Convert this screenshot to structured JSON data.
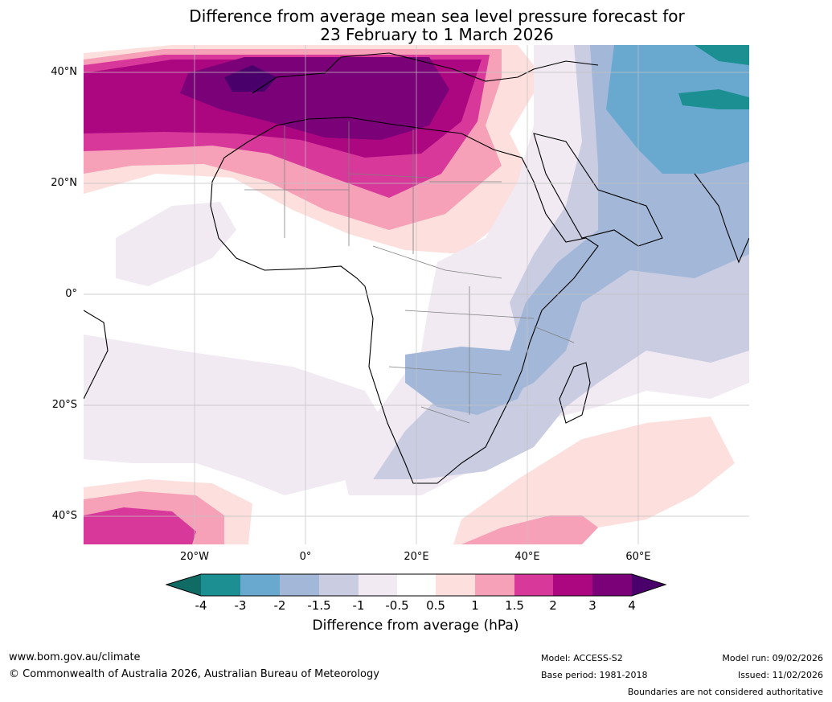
{
  "title": {
    "line1": "Difference from average mean sea level pressure forecast for",
    "line2": "23 February to 1 March 2026"
  },
  "map": {
    "region": "Africa, Middle East and surrounding oceans",
    "lat_labels": [
      "40°N",
      "20°N",
      "0°",
      "20°S",
      "40°S"
    ],
    "lon_labels": [
      "20°W",
      "0°",
      "20°E",
      "40°E",
      "60°E"
    ],
    "anomaly_zones": [
      {
        "area": "North Atlantic and Mediterranean",
        "range": "above 4 hPa",
        "sign": "positive"
      },
      {
        "area": "Sahara",
        "range": "1.5 to 3 hPa",
        "sign": "positive"
      },
      {
        "area": "Arabian Sea and Iran",
        "range": "-2 to -3 hPa",
        "sign": "negative"
      },
      {
        "area": "Southern Africa and Mozambique Channel",
        "range": "-1.5 to -2 hPa",
        "sign": "negative"
      },
      {
        "area": "South-west Indian Ocean",
        "range": "0.5 to 1.5 hPa",
        "sign": "positive"
      },
      {
        "area": "South-east Atlantic",
        "range": "1 to 2 hPa",
        "sign": "positive"
      }
    ]
  },
  "colorbar": {
    "ticks": [
      "-4",
      "-3",
      "-2",
      "-1.5",
      "-1",
      "-0.5",
      "0.5",
      "1",
      "1.5",
      "2",
      "3",
      "4"
    ],
    "colors": [
      "#0f6b63",
      "#1c8f93",
      "#69a9cf",
      "#a3b8d8",
      "#cacce2",
      "#f1eaf3",
      "#ffffff",
      "#fde0de",
      "#f7a1b9",
      "#d8389a",
      "#ad0681",
      "#7a0177",
      "#49006a"
    ],
    "title": "Difference from average (hPa)"
  },
  "footer": {
    "website": "www.bom.gov.au/climate",
    "copyright": "© Commonwealth of Australia 2026, Australian Bureau of Meteorology",
    "model": "Model: ACCESS-S2",
    "base_period": "Base period: 1981-2018",
    "model_run": "Model run: 09/02/2026",
    "issued": "Issued: 11/02/2026",
    "disclaimer": "Boundaries are not considered authoritative"
  }
}
